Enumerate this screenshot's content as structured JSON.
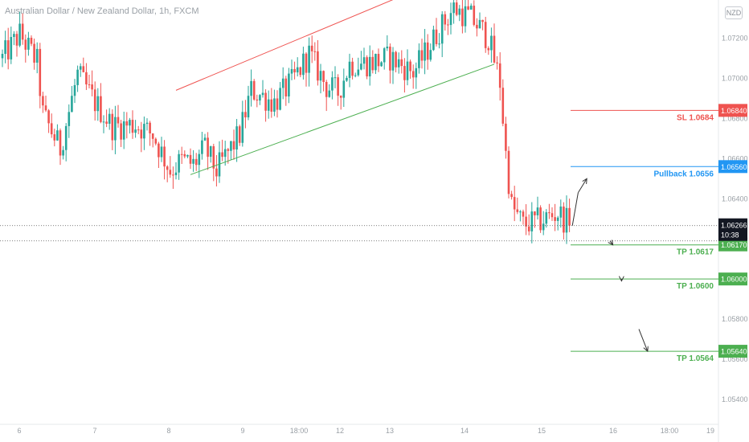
{
  "header": {
    "title": "Australian Dollar / New Zealand Dollar, 1h, FXCM",
    "currency_badge": "NZD"
  },
  "chart_data": {
    "type": "candlestick",
    "symbol": "AUDNZD",
    "timeframe": "1h",
    "ylim": [
      1.053,
      1.0739
    ],
    "y_ticks": [
      "1.07200",
      "1.07000",
      "1.06800",
      "1.06600",
      "1.06400",
      "1.06200",
      "1.05800",
      "1.05600",
      "1.05400"
    ],
    "x_ticks": [
      "6",
      "7",
      "8",
      "9",
      "18:00",
      "12",
      "13",
      "14",
      "15",
      "16",
      "18:00",
      "19"
    ],
    "current_price": {
      "label": "1.06266",
      "countdown": "10:38"
    },
    "levels": [
      {
        "name": "SL",
        "value": 1.0684,
        "label": "SL 1.0684",
        "axis_label": "1.06840",
        "color": "#ef5350"
      },
      {
        "name": "Pullback",
        "value": 1.0656,
        "label": "Pullback 1.0656",
        "axis_label": "1.06560",
        "color": "#2196f3"
      },
      {
        "name": "TP1",
        "value": 1.0617,
        "label": "TP 1.0617",
        "axis_label": "1.06170",
        "color": "#4caf50"
      },
      {
        "name": "TP2",
        "value": 1.06,
        "label": "TP 1.0600",
        "axis_label": "1.06000",
        "color": "#4caf50"
      },
      {
        "name": "TP3",
        "value": 1.0564,
        "label": "TP 1.0564",
        "axis_label": "1.05640",
        "color": "#4caf50"
      }
    ],
    "dotted_levels": [
      1.06266,
      1.0619
    ],
    "channel": {
      "upper": {
        "from": [
          60,
          1.0694
        ],
        "to": [
          143,
          1.0744
        ],
        "color": "#ef5350"
      },
      "lower": {
        "from": [
          65,
          1.0652
        ],
        "to": [
          170,
          1.0707
        ],
        "color": "#4caf50"
      }
    },
    "projection": [
      [
        199,
        1.0643
      ],
      [
        202,
        1.065
      ],
      [
        210,
        1.0619
      ],
      [
        211,
        1.0617
      ],
      [
        214,
        1.06
      ],
      [
        214,
        1.0599
      ],
      [
        220,
        1.0575
      ],
      [
        223,
        1.0564
      ]
    ],
    "candles": {
      "colors": {
        "up": "#26a69a",
        "down": "#ef5350"
      },
      "anchors": [
        [
          0,
          1.071
        ],
        [
          6,
          1.0722
        ],
        [
          12,
          1.0708
        ],
        [
          14,
          1.0682
        ],
        [
          20,
          1.0665
        ],
        [
          26,
          1.0702
        ],
        [
          32,
          1.0688
        ],
        [
          38,
          1.0676
        ],
        [
          46,
          1.0677
        ],
        [
          52,
          1.0672
        ],
        [
          58,
          1.0654
        ],
        [
          62,
          1.0659
        ],
        [
          66,
          1.0657
        ],
        [
          70,
          1.0665
        ],
        [
          74,
          1.0654
        ],
        [
          82,
          1.0672
        ],
        [
          86,
          1.0694
        ],
        [
          94,
          1.0688
        ],
        [
          100,
          1.0698
        ],
        [
          106,
          1.0712
        ],
        [
          112,
          1.0696
        ],
        [
          116,
          1.0693
        ],
        [
          120,
          1.0707
        ],
        [
          128,
          1.0708
        ],
        [
          134,
          1.071
        ],
        [
          142,
          1.0703
        ],
        [
          146,
          1.0712
        ],
        [
          150,
          1.0722
        ],
        [
          156,
          1.0735
        ],
        [
          162,
          1.073
        ],
        [
          168,
          1.072
        ],
        [
          172,
          1.0698
        ],
        [
          174,
          1.0662
        ],
        [
          176,
          1.0636
        ],
        [
          180,
          1.0627
        ],
        [
          186,
          1.0629
        ],
        [
          192,
          1.0633
        ],
        [
          196,
          1.0627
        ]
      ]
    }
  }
}
